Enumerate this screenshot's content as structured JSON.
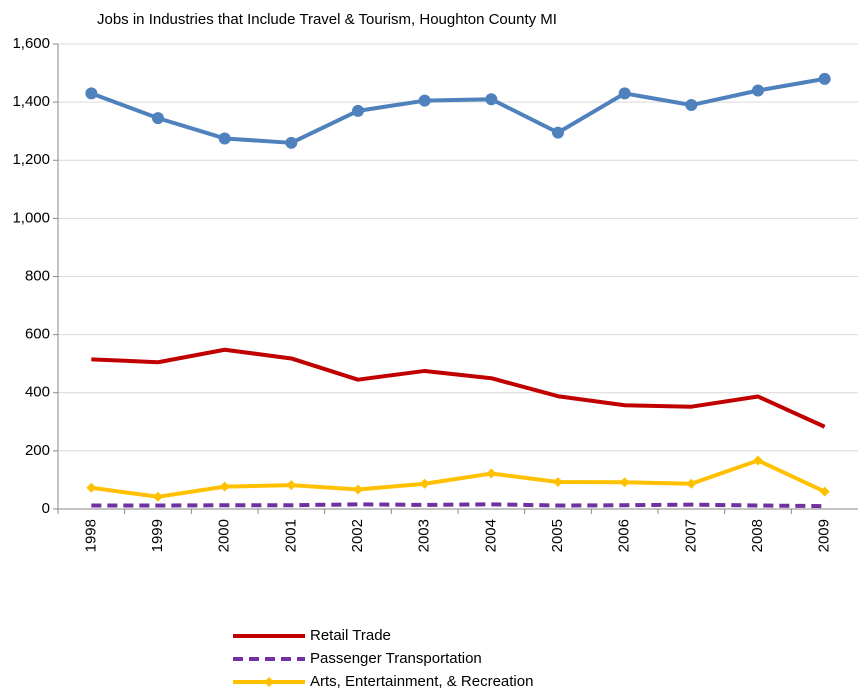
{
  "chart_data": {
    "type": "line",
    "title": "Jobs in Industries that Include Travel & Tourism, Houghton County MI",
    "categories": [
      "1998",
      "1999",
      "2000",
      "2001",
      "2002",
      "2003",
      "2004",
      "2005",
      "2006",
      "2007",
      "2008",
      "2009"
    ],
    "series": [
      {
        "color": "#4f81bd",
        "marker": "circle",
        "values": [
          1430,
          1345,
          1275,
          1260,
          1370,
          1405,
          1410,
          1295,
          1430,
          1390,
          1440,
          1480
        ]
      },
      {
        "name": "Retail Trade",
        "color": "#c00000",
        "values": [
          515,
          505,
          548,
          518,
          445,
          475,
          450,
          388,
          357,
          352,
          387,
          283
        ]
      },
      {
        "name": "Passenger Transportation",
        "color": "#7030a0",
        "dash": true,
        "values": [
          12,
          12,
          13,
          13,
          16,
          14,
          16,
          12,
          13,
          15,
          12,
          10
        ]
      },
      {
        "name": "Arts, Entertainment, & Recreation",
        "color": "#ffc000",
        "marker": "diamond",
        "values": [
          73,
          42,
          77,
          82,
          67,
          87,
          122,
          93,
          92,
          87,
          167,
          60
        ]
      }
    ],
    "ylim": [
      0,
      1600
    ],
    "yticks": [
      0,
      200,
      400,
      600,
      800,
      {
        "value": 1000,
        "label": "1,000"
      },
      {
        "value": 1200,
        "label": "1,200"
      },
      {
        "value": 1400,
        "label": "1,400"
      },
      {
        "value": 1600,
        "label": "1,600"
      }
    ],
    "grid": true
  }
}
